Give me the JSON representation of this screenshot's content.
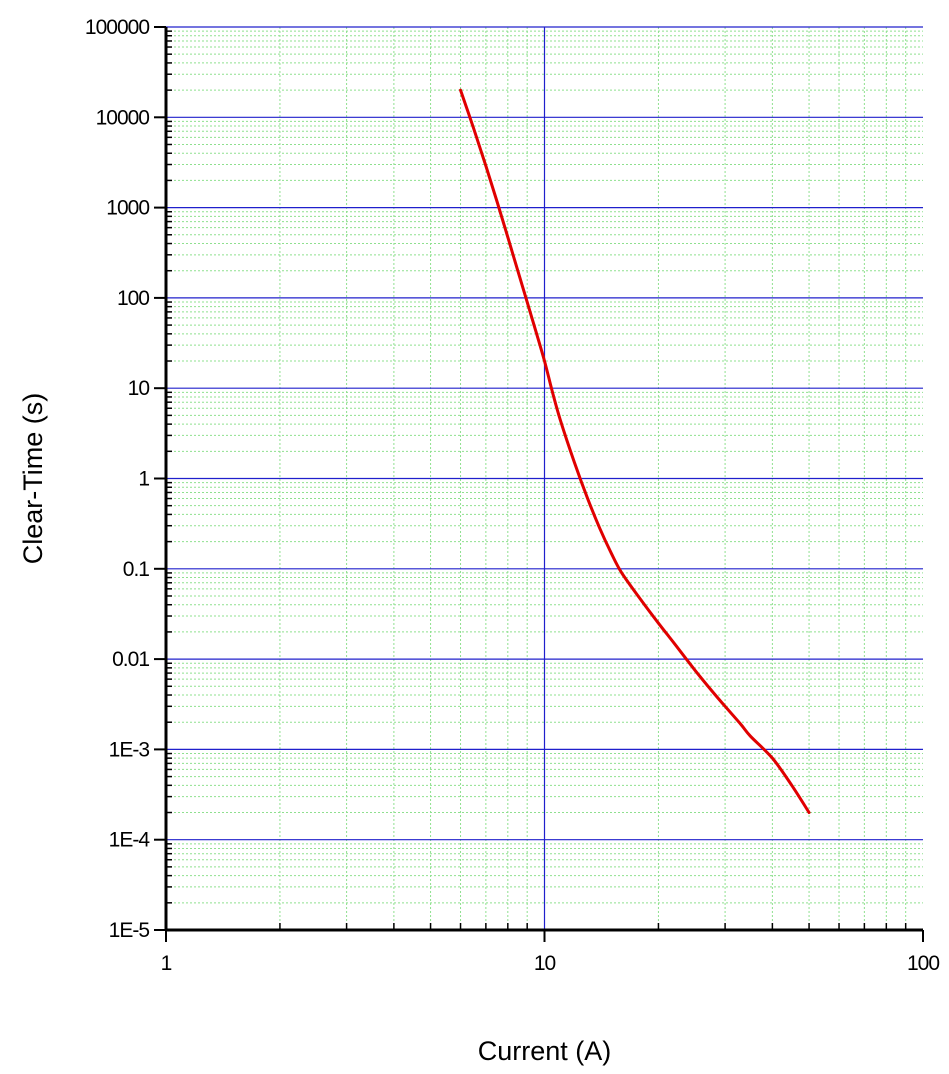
{
  "chart_data": {
    "type": "line",
    "title": "",
    "xlabel": "Current (A)",
    "ylabel": "Clear-Time (s)",
    "x_scale": "log",
    "y_scale": "log",
    "xlim": [
      1,
      100
    ],
    "ylim": [
      1e-05,
      100000
    ],
    "x_ticks": [
      {
        "value": 1,
        "label": "1"
      },
      {
        "value": 10,
        "label": "10"
      },
      {
        "value": 100,
        "label": "100"
      }
    ],
    "y_ticks": [
      {
        "value": 1e-05,
        "label": "1E-5"
      },
      {
        "value": 0.0001,
        "label": "1E-4"
      },
      {
        "value": 0.001,
        "label": "1E-3"
      },
      {
        "value": 0.01,
        "label": "0.01"
      },
      {
        "value": 0.1,
        "label": "0.1"
      },
      {
        "value": 1,
        "label": "1"
      },
      {
        "value": 10,
        "label": "10"
      },
      {
        "value": 100,
        "label": "100"
      },
      {
        "value": 1000,
        "label": "1000"
      },
      {
        "value": 10000,
        "label": "10000"
      },
      {
        "value": 100000,
        "label": "100000"
      }
    ],
    "grid": {
      "major": true,
      "minor": true,
      "major_color": "#2020cc",
      "minor_color": "#8fe08f"
    },
    "series": [
      {
        "color": "#e00000",
        "x": [
          6.0,
          6.5,
          7.0,
          7.5,
          8.0,
          8.5,
          9.0,
          9.5,
          10.0,
          10.5,
          11.0,
          12.0,
          13.0,
          14.0,
          15.0,
          16.0,
          18.0,
          20.0,
          22.0,
          25.0,
          28.0,
          30.0,
          33.0,
          35.0,
          40.0,
          45.0,
          50.0
        ],
        "y": [
          20000,
          7500,
          2900,
          1150,
          470,
          200,
          90,
          42,
          20,
          9,
          4.5,
          1.5,
          0.6,
          0.28,
          0.15,
          0.09,
          0.045,
          0.025,
          0.015,
          0.0075,
          0.0042,
          0.003,
          0.0019,
          0.0014,
          0.0008,
          0.0004,
          0.0002
        ]
      }
    ]
  }
}
